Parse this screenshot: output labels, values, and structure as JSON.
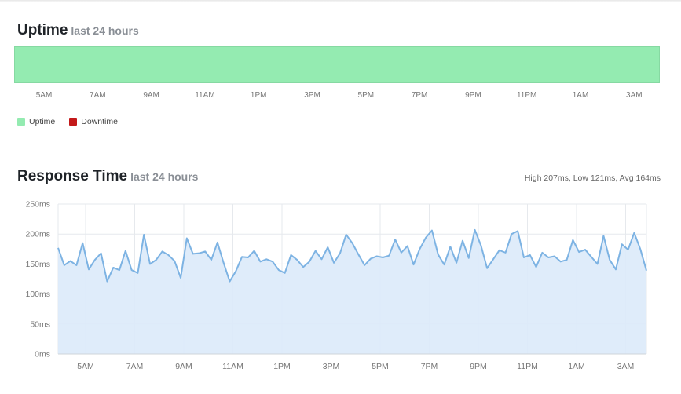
{
  "uptime": {
    "title": "Uptime",
    "subtitle": "last 24 hours",
    "ticks": [
      "5AM",
      "7AM",
      "9AM",
      "11AM",
      "1PM",
      "3PM",
      "5PM",
      "7PM",
      "9PM",
      "11PM",
      "1AM",
      "3AM"
    ],
    "legend": [
      {
        "label": "Uptime",
        "color": "#94ebb1"
      },
      {
        "label": "Downtime",
        "color": "#c3191a"
      }
    ],
    "uptime_fraction": 1.0
  },
  "response": {
    "title": "Response Time",
    "subtitle": "last 24 hours",
    "stats": "High 207ms, Low 121ms, Avg 164ms"
  },
  "chart_data": {
    "type": "area",
    "title": "Response Time",
    "subtitle": "last 24 hours",
    "ylabel": "",
    "xlabel": "",
    "ylim": [
      0,
      250
    ],
    "y_ticks": [
      "0ms",
      "50ms",
      "100ms",
      "150ms",
      "200ms",
      "250ms"
    ],
    "y_tick_values": [
      0,
      50,
      100,
      150,
      200,
      250
    ],
    "x_ticks": [
      "5AM",
      "7AM",
      "9AM",
      "11AM",
      "1PM",
      "3PM",
      "5PM",
      "7PM",
      "9PM",
      "11PM",
      "1AM",
      "3AM"
    ],
    "grid": true,
    "line_color": "#7db3e3",
    "fill_color": "#dceaf9",
    "series": [
      {
        "values": [
          177,
          148,
          155,
          148,
          185,
          141,
          157,
          168,
          121,
          144,
          140,
          172,
          140,
          135,
          199,
          150,
          157,
          171,
          165,
          155,
          127,
          193,
          167,
          168,
          171,
          157,
          186,
          152,
          121,
          138,
          162,
          161,
          172,
          154,
          158,
          154,
          140,
          135,
          165,
          157,
          145,
          154,
          172,
          158,
          178,
          152,
          168,
          199,
          185,
          166,
          148,
          159,
          163,
          161,
          164,
          191,
          169,
          180,
          149,
          175,
          194,
          206,
          166,
          149,
          179,
          152,
          189,
          160,
          207,
          181,
          143,
          158,
          173,
          169,
          200,
          205,
          161,
          165,
          145,
          169,
          161,
          163,
          154,
          157,
          190,
          170,
          174,
          162,
          150,
          197,
          157,
          141,
          183,
          174,
          202,
          175,
          139
        ]
      }
    ]
  }
}
